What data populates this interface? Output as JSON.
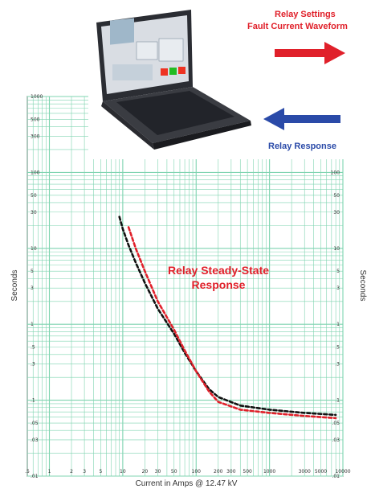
{
  "chart_data": {
    "type": "line",
    "xscale": "log",
    "yscale": "log",
    "xlim": [
      0.5,
      10000
    ],
    "ylim": [
      0.01,
      1000
    ],
    "xlabel": "Current in Amps @ 12.47 kV",
    "ylabel_left": "Seconds",
    "ylabel_right": "Seconds",
    "x_tick_labels": [
      ".5",
      "1",
      "2",
      "3",
      "5",
      "10",
      "20",
      "30",
      "50",
      "100",
      "200",
      "300",
      "500",
      "1000",
      "3000",
      "5000",
      "10000"
    ],
    "y_tick_labels": [
      "1000",
      "500",
      "300",
      "100",
      "50",
      "30",
      "10",
      "5",
      "3",
      "1",
      ".5",
      ".3",
      ".1",
      ".05",
      ".03",
      ".01"
    ],
    "grid": true,
    "annotation": {
      "line1": "Relay Steady-State",
      "line2": "Response",
      "color": "#e0202a"
    },
    "series": [
      {
        "color": "#111111",
        "style": "dashed",
        "points": [
          [
            9,
            26
          ],
          [
            10,
            18
          ],
          [
            12,
            11
          ],
          [
            15,
            6.5
          ],
          [
            20,
            3.5
          ],
          [
            30,
            1.6
          ],
          [
            50,
            0.75
          ],
          [
            70,
            0.42
          ],
          [
            100,
            0.24
          ],
          [
            150,
            0.14
          ],
          [
            200,
            0.11
          ],
          [
            400,
            0.085
          ],
          [
            1000,
            0.075
          ],
          [
            3000,
            0.068
          ],
          [
            8000,
            0.064
          ]
        ]
      },
      {
        "color": "#e0202a",
        "style": "dashed",
        "points": [
          [
            12,
            19
          ],
          [
            15,
            10
          ],
          [
            20,
            5
          ],
          [
            30,
            2
          ],
          [
            50,
            0.85
          ],
          [
            70,
            0.45
          ],
          [
            100,
            0.24
          ],
          [
            150,
            0.13
          ],
          [
            200,
            0.095
          ],
          [
            400,
            0.075
          ],
          [
            1000,
            0.068
          ],
          [
            3000,
            0.062
          ],
          [
            8000,
            0.058
          ]
        ]
      }
    ]
  },
  "diagram": {
    "relay_settings": "Relay Settings",
    "fault_current_waveform": "Fault Current Waveform",
    "relay_response": "Relay Response",
    "arrow_right_color": "#e0202a",
    "arrow_left_color": "#2a4aa8"
  },
  "grid_color": "#7fd4b0",
  "laptop_icon": "laptop-icon"
}
